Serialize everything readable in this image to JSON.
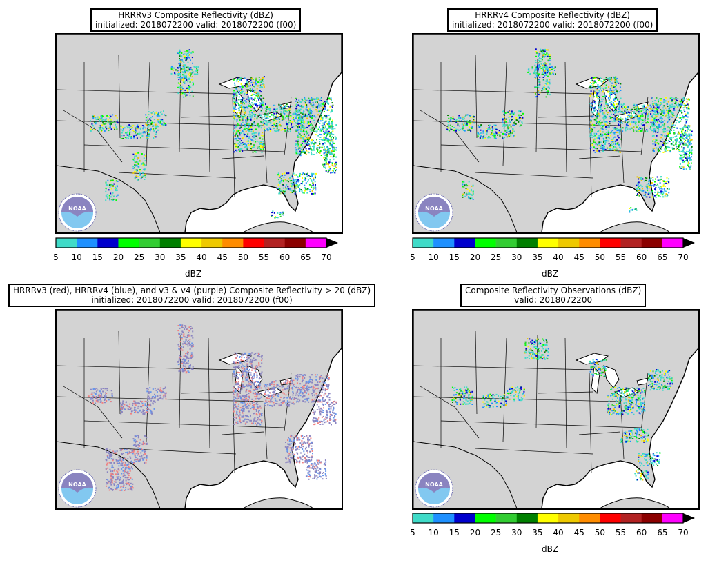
{
  "panels": [
    {
      "id": "hrrrv3",
      "title_line1": "HRRRv3 Composite Reflectivity (dBZ)",
      "title_line2": "initialized: 2018072200 valid: 2018072200 (f00)",
      "has_colorbar": true
    },
    {
      "id": "hrrrv4",
      "title_line1": "HRRRv4 Composite Reflectivity (dBZ)",
      "title_line2": "initialized: 2018072200 valid: 2018072200 (f00)",
      "has_colorbar": true
    },
    {
      "id": "compare",
      "title_line1": "HRRRv3 (red), HRRRv4 (blue), and v3 & v4 (purple) Composite Reflectivity > 20 (dBZ)",
      "title_line2": "initialized: 2018072200 valid: 2018072200 (f00)",
      "has_colorbar": false
    },
    {
      "id": "obs",
      "title_line1": "Composite Reflectivity Observations (dBZ)",
      "title_line2": "valid: 2018072200",
      "has_colorbar": true
    }
  ],
  "colorbar": {
    "label": "dBZ",
    "ticks": [
      "5",
      "10",
      "15",
      "20",
      "25",
      "30",
      "35",
      "40",
      "45",
      "50",
      "55",
      "60",
      "65",
      "70"
    ],
    "colors": [
      "#3fdbc8",
      "#1e90ff",
      "#0000cd",
      "#00ff00",
      "#32cd32",
      "#008000",
      "#ffff00",
      "#eec900",
      "#ff8c00",
      "#ff0000",
      "#b22222",
      "#8b0000",
      "#ff00ff"
    ],
    "extend": "max"
  },
  "logo_text": "NOAA",
  "colors": {
    "land": "#d3d3d3",
    "water": "#ffffff",
    "border": "#000000",
    "v3_only": "#f08080",
    "v4_only": "#6495ed",
    "both": "#8a84c0"
  }
}
